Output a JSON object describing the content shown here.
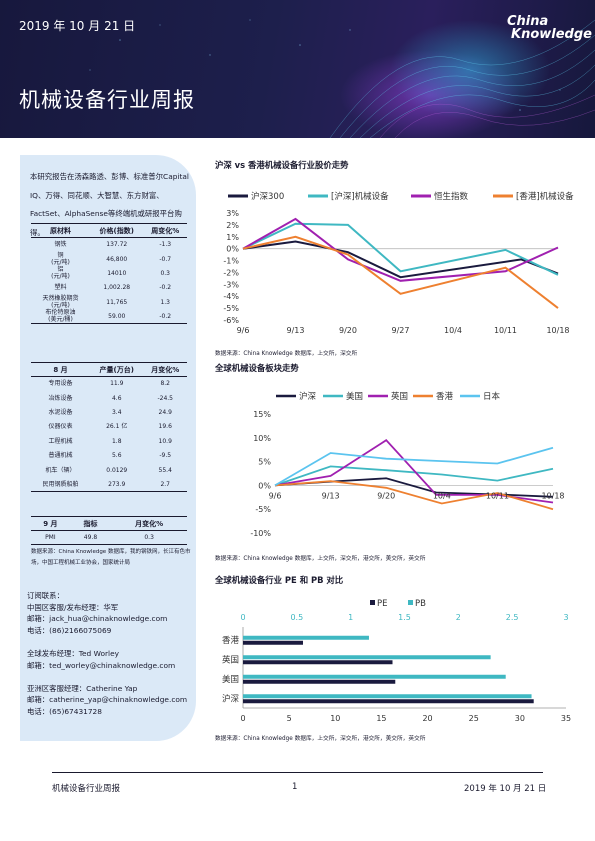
{
  "header": {
    "date": "2019 年 10 月 21 日",
    "title": "机械设备行业周报",
    "logo_line1": "China",
    "logo_line2": "Knowledge"
  },
  "sidebar": {
    "intro": "本研究报告在汤森路透、彭博、标准普尔Capital IQ、万得、同花顺、大智慧、东方财富、FactSet、AlphaSense等终端机或研报平台购得。",
    "table1": {
      "headers": [
        "原材料",
        "价格(指数)",
        "周变化%"
      ],
      "rows": [
        [
          "钢铁",
          "137.72",
          "-1.3"
        ],
        [
          "铜\n(元/吨)",
          "46,800",
          "-0.7"
        ],
        [
          "铝\n(元/吨)",
          "14010",
          "0.3"
        ],
        [
          "塑料",
          "1,002.28",
          "-0.2"
        ],
        [
          "天然橡胶期货\n(元/吨)",
          "11,765",
          "1.3"
        ],
        [
          "布伦特原油\n(美元/桶)",
          "59.00",
          "-0.2"
        ]
      ]
    },
    "table2": {
      "headers": [
        "8 月",
        "产量(万台)",
        "月变化%"
      ],
      "rows": [
        [
          "专用设备",
          "11.9",
          "8.2"
        ],
        [
          "冶炼设备",
          "4.6",
          "-24.5"
        ],
        [
          "水泥设备",
          "3.4",
          "24.9"
        ],
        [
          "仪器仪表",
          "26.1 亿",
          "19.6"
        ],
        [
          "工程机械",
          "1.8",
          "10.9"
        ],
        [
          "普通机械",
          "5.6",
          "-9.5"
        ],
        [
          "机车（辆）",
          "0.0129",
          "55.4"
        ],
        [
          "民用钢质船舶",
          "273.9",
          "2.7"
        ]
      ]
    },
    "table3": {
      "headers": [
        "9 月",
        "指标",
        "月变化%"
      ],
      "rows": [
        [
          "PMI",
          "49.8",
          "0.3"
        ]
      ]
    },
    "note": "数据来源：China Knowledge 数据库，我的钢铁网，长江有色市场，中国工程机械工业协会，国家统计局",
    "contacts": [
      "订阅联系：",
      "中国区客服/发布经理：华军",
      "邮箱：jack_hua@chinaknowledge.com",
      "电话：(86)2166075069",
      "",
      "全球发布经理：Ted Worley",
      "邮箱：ted_worley@chinaknowledge.com",
      "",
      "亚洲区客服经理：Catherine Yap",
      "邮箱：catherine_yap@chinaknowledge.com",
      "电话：(65)67431728"
    ]
  },
  "sections": {
    "chart1_title": "沪深 vs 香港机械设备行业股价走势",
    "chart1_source": "数据来源：China Knowledge 数据库，上交所，深交所",
    "chart2_title": "全球机械设备板块走势",
    "chart2_source": "数据来源：China Knowledge 数据库，上交所，深交所，港交所，美交所，英交所",
    "chart3_title": "全球机械设备行业 PE 和 PB 对比",
    "chart3_source": "数据来源：China Knowledge 数据库，上交所，深交所，港交所，美交所，英交所"
  },
  "footer": {
    "left": "机械设备行业周报",
    "page": "1",
    "right": "2019 年 10 月 21 日"
  },
  "chart_data": [
    {
      "type": "line",
      "title": "沪深 vs 香港机械设备行业股价走势",
      "categories": [
        "9/6",
        "9/13",
        "9/20",
        "9/27",
        "10/4",
        "10/11",
        "10/18"
      ],
      "ylim": [
        -6,
        3
      ],
      "yticks": [
        "3%",
        "2%",
        "1%",
        "0%",
        "-1%",
        "-2%",
        "-3%",
        "-4%",
        "-5%",
        "-6%"
      ],
      "legend": "top",
      "series": [
        {
          "name": "沪深300",
          "color": "#1a1a3e",
          "values": [
            0,
            0.6,
            -0.3,
            -2.4,
            null,
            -0.9,
            -2.1
          ]
        },
        {
          "name": "[沪深]机械设备",
          "color": "#3fb8c2",
          "values": [
            0,
            2.1,
            2.0,
            -1.9,
            null,
            -0.1,
            -2.2
          ]
        },
        {
          "name": "恒生指数",
          "color": "#a020b0",
          "values": [
            0,
            2.5,
            -0.9,
            -2.7,
            null,
            -1.9,
            0.1
          ]
        },
        {
          "name": "[香港]机械设备",
          "color": "#ee8030",
          "values": [
            0,
            1.0,
            -0.5,
            -3.8,
            null,
            -1.6,
            -5.0
          ]
        }
      ],
      "points": [
        [
          [
            0,
            0
          ],
          [
            1,
            0.6
          ],
          [
            2,
            -0.3
          ],
          [
            3,
            -2.4
          ],
          [
            5.3,
            -0.9
          ],
          [
            6,
            -2.1
          ]
        ],
        [
          [
            0,
            0
          ],
          [
            1,
            2.1
          ],
          [
            2,
            2.0
          ],
          [
            3,
            -1.9
          ],
          [
            5,
            -0.1
          ],
          [
            6,
            -2.2
          ]
        ],
        [
          [
            0,
            0
          ],
          [
            1,
            2.5
          ],
          [
            2,
            -0.9
          ],
          [
            3,
            -2.7
          ],
          [
            5,
            -1.9
          ],
          [
            6,
            0.1
          ]
        ],
        [
          [
            0,
            0
          ],
          [
            1,
            1.0
          ],
          [
            2,
            -0.5
          ],
          [
            3,
            -3.8
          ],
          [
            5,
            -1.6
          ],
          [
            6,
            -5.0
          ]
        ]
      ]
    },
    {
      "type": "line",
      "title": "全球机械设备板块走势",
      "categories": [
        "9/6",
        "9/13",
        "9/20",
        "10/4",
        "10/11",
        "10/18"
      ],
      "ylim": [
        -10,
        15
      ],
      "yticks": [
        "15%",
        "10%",
        "5%",
        "0%",
        "-5%",
        "-10%"
      ],
      "legend": "top",
      "series": [
        {
          "name": "沪深",
          "color": "#1a1a3e",
          "points": [
            [
              0,
              0
            ],
            [
              1,
              0.8
            ],
            [
              2,
              1.5
            ],
            [
              2.9,
              -1.5
            ],
            [
              4.2,
              -2.0
            ],
            [
              5,
              -2.4
            ]
          ]
        },
        {
          "name": "美国",
          "color": "#3fb8c2",
          "points": [
            [
              0,
              0
            ],
            [
              1,
              4.0
            ],
            [
              2,
              3.2
            ],
            [
              3,
              2.3
            ],
            [
              4,
              1.0
            ],
            [
              5,
              3.5
            ]
          ]
        },
        {
          "name": "英国",
          "color": "#a020b0",
          "points": [
            [
              0,
              0
            ],
            [
              1,
              2.0
            ],
            [
              2,
              9.5
            ],
            [
              2.9,
              -2.0
            ],
            [
              4,
              -2.0
            ],
            [
              5,
              -3.6
            ]
          ]
        },
        {
          "name": "香港",
          "color": "#ee8030",
          "points": [
            [
              0,
              0
            ],
            [
              1,
              0.9
            ],
            [
              2,
              -0.5
            ],
            [
              3,
              -3.8
            ],
            [
              4,
              -1.6
            ],
            [
              5,
              -5.0
            ]
          ]
        },
        {
          "name": "日本",
          "color": "#5bc4ef",
          "points": [
            [
              0,
              0
            ],
            [
              1,
              6.8
            ],
            [
              2,
              5.6
            ],
            [
              3,
              5.1
            ],
            [
              4,
              4.6
            ],
            [
              5,
              7.9
            ]
          ]
        }
      ]
    },
    {
      "type": "bar",
      "title": "全球机械设备行业 PE 和 PB 对比",
      "categories": [
        "香港",
        "英国",
        "美国",
        "沪深"
      ],
      "pe_xlim": [
        0,
        35
      ],
      "pb_xlim": [
        0,
        3
      ],
      "pe_ticks": [
        "0",
        "5",
        "10",
        "15",
        "20",
        "25",
        "30",
        "35"
      ],
      "pb_ticks": [
        "0",
        "0.5",
        "1",
        "1.5",
        "2",
        "2.5",
        "3"
      ],
      "legend": "top",
      "series": [
        {
          "name": "PE",
          "color": "#1a1a3e",
          "values": [
            6.5,
            16.2,
            16.5,
            31.5
          ]
        },
        {
          "name": "PB",
          "color": "#3fb8c2",
          "values": [
            1.17,
            2.3,
            2.44,
            2.68
          ]
        }
      ]
    }
  ]
}
